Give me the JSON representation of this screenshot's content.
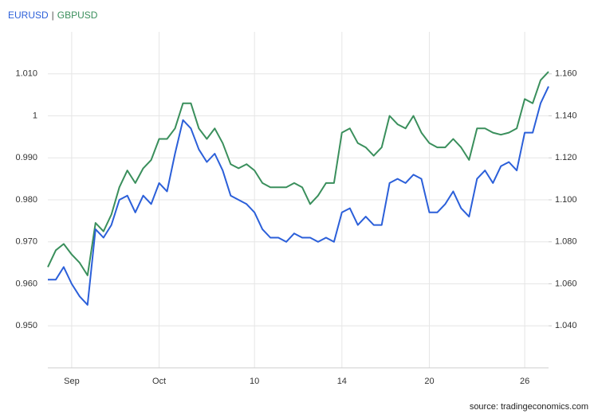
{
  "chart_data": {
    "type": "line",
    "legend_separator": "|",
    "source": "source: tradingeconomics.com",
    "categories": [
      null,
      null,
      null,
      "Sep",
      null,
      null,
      null,
      null,
      null,
      null,
      null,
      null,
      null,
      null,
      "Oct",
      null,
      null,
      null,
      null,
      null,
      null,
      null,
      null,
      null,
      null,
      null,
      "10",
      null,
      null,
      null,
      null,
      null,
      null,
      null,
      null,
      null,
      null,
      "14",
      null,
      null,
      null,
      null,
      null,
      null,
      null,
      null,
      null,
      null,
      "20",
      null,
      null,
      null,
      null,
      null,
      null,
      null,
      null,
      null,
      null,
      null,
      "26",
      null,
      null,
      null
    ],
    "series": [
      {
        "name": "EURUSD",
        "color": "#2b5fd9",
        "values": [
          0.961,
          0.961,
          0.964,
          0.96,
          0.957,
          0.955,
          0.973,
          0.971,
          0.974,
          0.98,
          0.981,
          0.977,
          0.981,
          0.979,
          0.984,
          0.982,
          0.991,
          0.999,
          0.997,
          0.992,
          0.989,
          0.991,
          0.987,
          0.981,
          0.98,
          0.979,
          0.977,
          0.973,
          0.971,
          0.971,
          0.97,
          0.972,
          0.971,
          0.971,
          0.97,
          0.971,
          0.97,
          0.977,
          0.978,
          0.974,
          0.976,
          0.974,
          0.974,
          0.984,
          0.985,
          0.984,
          0.986,
          0.985,
          0.977,
          0.977,
          0.979,
          0.982,
          0.978,
          0.976,
          0.985,
          0.987,
          0.984,
          0.988,
          0.989,
          0.987,
          0.996,
          0.996,
          1.003,
          1.007
        ]
      },
      {
        "name": "GBPUSD",
        "color": "#3a8f5c",
        "axis": "y2",
        "values": [
          1.068,
          1.076,
          1.079,
          1.074,
          1.07,
          1.064,
          1.089,
          1.085,
          1.093,
          1.106,
          1.114,
          1.108,
          1.115,
          1.119,
          1.129,
          1.129,
          1.134,
          1.146,
          1.146,
          1.134,
          1.129,
          1.134,
          1.127,
          1.117,
          1.115,
          1.117,
          1.114,
          1.108,
          1.106,
          1.106,
          1.106,
          1.108,
          1.106,
          1.098,
          1.102,
          1.108,
          1.108,
          1.132,
          1.134,
          1.127,
          1.125,
          1.121,
          1.125,
          1.14,
          1.136,
          1.134,
          1.14,
          1.132,
          1.127,
          1.125,
          1.125,
          1.129,
          1.125,
          1.119,
          1.134,
          1.134,
          1.132,
          1.131,
          1.132,
          1.134,
          1.148,
          1.146,
          1.157,
          1.161
        ]
      }
    ],
    "ylim": [
      0.94,
      1.02
    ],
    "yticks": [
      {
        "value": 0.95,
        "label": "0.950"
      },
      {
        "value": 0.96,
        "label": "0.960"
      },
      {
        "value": 0.97,
        "label": "0.970"
      },
      {
        "value": 0.98,
        "label": "0.980"
      },
      {
        "value": 0.99,
        "label": "0.990"
      },
      1,
      {
        "value": 1.01,
        "label": "1.010"
      }
    ],
    "y2lim": [
      1.02,
      1.18
    ],
    "y2ticks": [
      {
        "value": 1.04,
        "label": "1.040"
      },
      {
        "value": 1.06,
        "label": "1.060"
      },
      {
        "value": 1.08,
        "label": "1.080"
      },
      {
        "value": 1.1,
        "label": "1.100"
      },
      {
        "value": 1.12,
        "label": "1.120"
      },
      {
        "value": 1.14,
        "label": "1.140"
      },
      {
        "value": 1.16,
        "label": "1.160"
      }
    ],
    "grid": true
  }
}
